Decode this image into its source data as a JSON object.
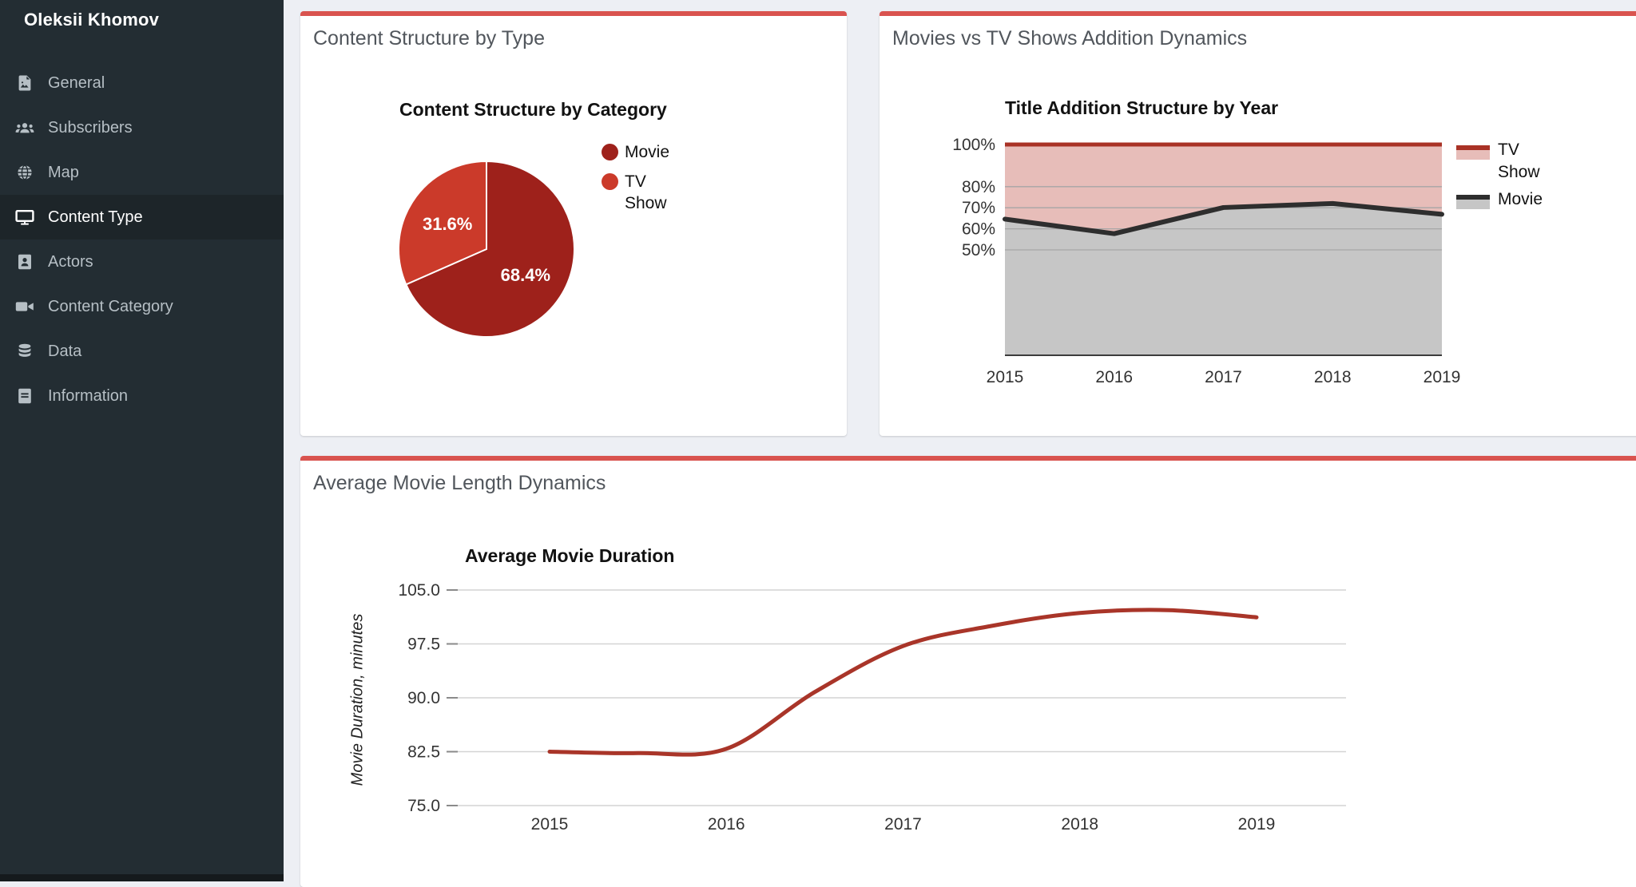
{
  "colors": {
    "accent_bar": "#d9534f",
    "sidebar_bg": "#232d33",
    "sidebar_active_bg": "#1d2529",
    "content_bg": "#edeff4",
    "pie_movie": "#9e211b",
    "pie_tv_show": "#cb3a2a",
    "area_tv_fill": "#e7bdb9",
    "area_tv_line": "#a93226",
    "area_movie_fill": "#c6c6c6",
    "area_movie_line": "#2e2e2e",
    "line_color": "#a93529",
    "grid_dark": "#a6a6a6",
    "grid_light": "#d4d4d4",
    "tick_text": "#333333"
  },
  "sidebar": {
    "user_name": "Oleksii Khomov",
    "items": [
      {
        "label": "General",
        "icon": "file-image-icon",
        "active": false
      },
      {
        "label": "Subscribers",
        "icon": "users-icon",
        "active": false
      },
      {
        "label": "Map",
        "icon": "globe-icon",
        "active": false
      },
      {
        "label": "Content Type",
        "icon": "desktop-icon",
        "active": true
      },
      {
        "label": "Actors",
        "icon": "portrait-icon",
        "active": false
      },
      {
        "label": "Content Category",
        "icon": "video-icon",
        "active": false
      },
      {
        "label": "Data",
        "icon": "database-icon",
        "active": false
      },
      {
        "label": "Information",
        "icon": "book-icon",
        "active": false
      }
    ]
  },
  "cards": [
    {
      "title": "Content Structure by Type"
    },
    {
      "title": "Movies vs TV Shows Addition Dynamics"
    },
    {
      "title": "Average Movie Length Dynamics"
    }
  ],
  "chart_data": [
    {
      "type": "pie",
      "title": "Content Structure by Category",
      "labels": [
        "Movie",
        "TV Show"
      ],
      "values": [
        68.4,
        31.6
      ],
      "value_labels": [
        "68.4%",
        "31.6%"
      ],
      "colors": [
        "#9e211b",
        "#cb3a2a"
      ],
      "legend_position": "right",
      "start_angle_deg": 0,
      "direction": "clockwise"
    },
    {
      "type": "area",
      "stacked_percent": true,
      "title": "Title Addition Structure by Year",
      "categories": [
        "2015",
        "2016",
        "2017",
        "2018",
        "2019"
      ],
      "series": [
        {
          "name": "TV Show",
          "values": [
            35.4,
            42.3,
            29.9,
            28.0,
            33.1
          ],
          "fill": "#e7bdb9",
          "line": "#a93226"
        },
        {
          "name": "Movie",
          "values": [
            64.6,
            57.7,
            70.1,
            72.0,
            66.9
          ],
          "fill": "#c6c6c6",
          "line": "#2e2e2e"
        }
      ],
      "ylim": [
        0,
        100
      ],
      "y_ticks": [
        {
          "label": "100%",
          "value": 100
        },
        {
          "label": "80%",
          "value": 80
        },
        {
          "label": "70%",
          "value": 70
        },
        {
          "label": "60%",
          "value": 60
        },
        {
          "label": "50%",
          "value": 50
        }
      ],
      "grid": true,
      "legend_position": "right"
    },
    {
      "type": "line",
      "title": "Average Movie Duration",
      "ylabel": "Movie Duration, minutes",
      "points": [
        [
          2015,
          82.5
        ],
        [
          2015.5,
          82.3
        ],
        [
          2016,
          82.9
        ],
        [
          2016.5,
          90.8
        ],
        [
          2017,
          97.2
        ],
        [
          2017.5,
          100.0
        ],
        [
          2018,
          101.8
        ],
        [
          2018.5,
          102.2
        ],
        [
          2019,
          101.2
        ]
      ],
      "x_ticks": [
        "2015",
        "2016",
        "2017",
        "2018",
        "2019"
      ],
      "y_ticks": [
        {
          "label": "105.0",
          "value": 105
        },
        {
          "label": "97.5",
          "value": 97.5
        },
        {
          "label": "90.0",
          "value": 90
        },
        {
          "label": "82.5",
          "value": 82.5
        },
        {
          "label": "75.0",
          "value": 75
        }
      ],
      "ylim": [
        75,
        105
      ],
      "grid": true
    }
  ]
}
